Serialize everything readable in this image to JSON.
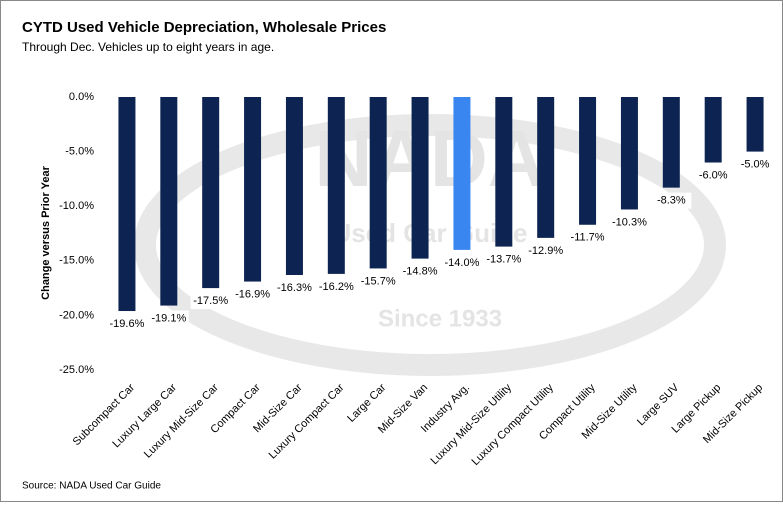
{
  "chart_data": {
    "type": "bar",
    "title": "CYTD Used Vehicle Depreciation, Wholesale Prices",
    "subtitle": "Through Dec. Vehicles up to eight years in age.",
    "y_label": "Change versus Prior Year",
    "source": "Source:  NADA Used Car Guide",
    "watermark": {
      "brand": "NADA",
      "tagline": "Used Car Guide",
      "since": "Since 1933"
    },
    "categories": [
      "Subcompact Car",
      "Luxury Large Car",
      "Luxury Mid-Size Car",
      "Compact Car",
      "Mid-Size Car",
      "Luxury Compact Car",
      "Large Car",
      "Mid-Size Van",
      "Industry Avg.",
      "Luxury Mid-Size Utility",
      "Luxury Compact Utility",
      "Compact Utility",
      "Mid-Size Utility",
      "Large SUV",
      "Large Pickup",
      "Mid-Size Pickup"
    ],
    "values": [
      -19.6,
      -19.1,
      -17.5,
      -16.9,
      -16.3,
      -16.2,
      -15.7,
      -14.8,
      -14.0,
      -13.7,
      -12.9,
      -11.7,
      -10.3,
      -8.3,
      -6.0,
      -5.0
    ],
    "value_labels": [
      "-19.6%",
      "-19.1%",
      "-17.5%",
      "-16.9%",
      "-16.3%",
      "-16.2%",
      "-15.7%",
      "-14.8%",
      "-14.0%",
      "-13.7%",
      "-12.9%",
      "-11.7%",
      "-10.3%",
      "-8.3%",
      "-6.0%",
      "-5.0%"
    ],
    "colors": [
      "#0d2452",
      "#0d2452",
      "#0d2452",
      "#0d2452",
      "#0d2452",
      "#0d2452",
      "#0d2452",
      "#0d2452",
      "#3a86f0",
      "#0d2452",
      "#0d2452",
      "#0d2452",
      "#0d2452",
      "#0d2452",
      "#0d2452",
      "#0d2452"
    ],
    "ylim": [
      -25,
      0
    ],
    "yticks": [
      {
        "value": 0,
        "label": "0.0%"
      },
      {
        "value": -5,
        "label": "-5.0%"
      },
      {
        "value": -10,
        "label": "-10.0%"
      },
      {
        "value": -15,
        "label": "-15.0%"
      },
      {
        "value": -20,
        "label": "-20.0%"
      },
      {
        "value": -25,
        "label": "-25.0%"
      }
    ]
  }
}
